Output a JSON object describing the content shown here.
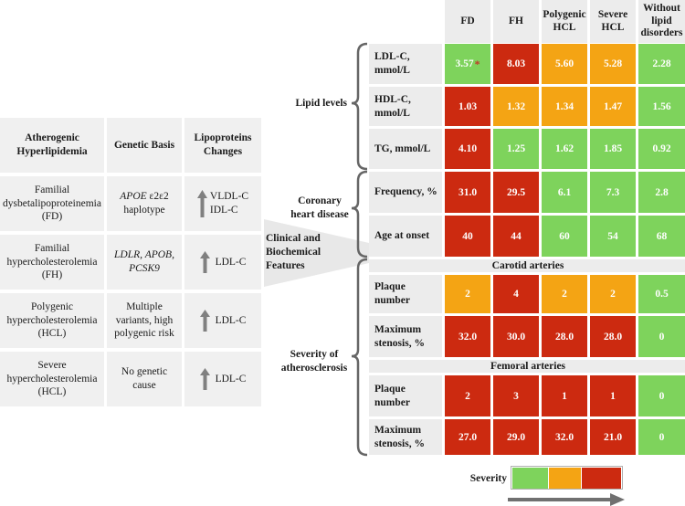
{
  "left_table": {
    "headers": [
      "Atherogenic Hyperlipidemia",
      "Genetic Basis",
      "Lipoproteins Changes"
    ],
    "rows": [
      {
        "name": "Familial dysbetalipoproteinemia (FD)",
        "genetic": "APOE ε2ε2 haplotype",
        "genetic_italic_part": "APOE",
        "genetic_rest": " ε2ε2 haplotype",
        "changes": "VLDL-C IDL-C",
        "changes_line1": "VLDL-C",
        "changes_line2": "IDL-C"
      },
      {
        "name": "Familial hypercholesterolemia (FH)",
        "genetic": "LDLR, APOB, PCSK9",
        "changes": "LDL-C"
      },
      {
        "name": "Polygenic hypercholesterolemia (HCL)",
        "genetic": "Multiple variants, high polygenic risk",
        "changes": "LDL-C"
      },
      {
        "name": "Severe hypercholesterolemia (HCL)",
        "genetic": "No genetic cause",
        "changes": "LDL-C"
      }
    ]
  },
  "connector_label": "Clinical and Biochemical Features",
  "columns": [
    "FD",
    "FH",
    "Polygenic HCL",
    "Severe HCL",
    "Without lipid disorders"
  ],
  "groups": [
    {
      "label": "Lipid levels"
    },
    {
      "label": "Coronary heart disease"
    },
    {
      "label": "Severity of atherosclerosis"
    }
  ],
  "subheaders": {
    "carotid": "Carotid arteries",
    "femoral": "Femoral arteries"
  },
  "rows": [
    {
      "label": "LDL-C, mmol/L",
      "values": [
        "3.57",
        "8.03",
        "5.60",
        "5.28",
        "2.28"
      ],
      "marker": "*",
      "levels": [
        "green",
        "red",
        "orange",
        "orange",
        "green"
      ]
    },
    {
      "label": "HDL-C, mmol/L",
      "values": [
        "1.03",
        "1.32",
        "1.34",
        "1.47",
        "1.56"
      ],
      "levels": [
        "red",
        "orange",
        "orange",
        "orange",
        "green"
      ]
    },
    {
      "label": "TG, mmol/L",
      "values": [
        "4.10",
        "1.25",
        "1.62",
        "1.85",
        "0.92"
      ],
      "levels": [
        "red",
        "green",
        "green",
        "green",
        "green"
      ]
    },
    {
      "label": "Frequency, %",
      "values": [
        "31.0",
        "29.5",
        "6.1",
        "7.3",
        "2.8"
      ],
      "levels": [
        "red",
        "red",
        "green",
        "green",
        "green"
      ]
    },
    {
      "label": "Age at onset",
      "values": [
        "40",
        "44",
        "60",
        "54",
        "68"
      ],
      "levels": [
        "red",
        "red",
        "green",
        "green",
        "green"
      ]
    },
    {
      "label": "Plaque number",
      "values": [
        "2",
        "4",
        "2",
        "2",
        "0.5"
      ],
      "levels": [
        "orange",
        "red",
        "orange",
        "orange",
        "green"
      ]
    },
    {
      "label": "Maximum stenosis, %",
      "values": [
        "32.0",
        "30.0",
        "28.0",
        "28.0",
        "0"
      ],
      "levels": [
        "red",
        "red",
        "red",
        "red",
        "green"
      ]
    },
    {
      "label": "Plaque number",
      "values": [
        "2",
        "3",
        "1",
        "1",
        "0"
      ],
      "levels": [
        "red",
        "red",
        "red",
        "red",
        "green"
      ]
    },
    {
      "label": "Maximum stenosis, %",
      "values": [
        "27.0",
        "29.0",
        "32.0",
        "21.0",
        "0"
      ],
      "levels": [
        "red",
        "red",
        "red",
        "red",
        "green"
      ]
    }
  ],
  "legend": {
    "label": "Severity",
    "levels": [
      "green",
      "orange",
      "red"
    ]
  },
  "colors": {
    "green": "#7ed35c",
    "orange": "#f4a414",
    "red": "#cc2a10",
    "header_bg": "#ececec",
    "left_bg": "#f0f0f0",
    "arrow": "#808080"
  }
}
